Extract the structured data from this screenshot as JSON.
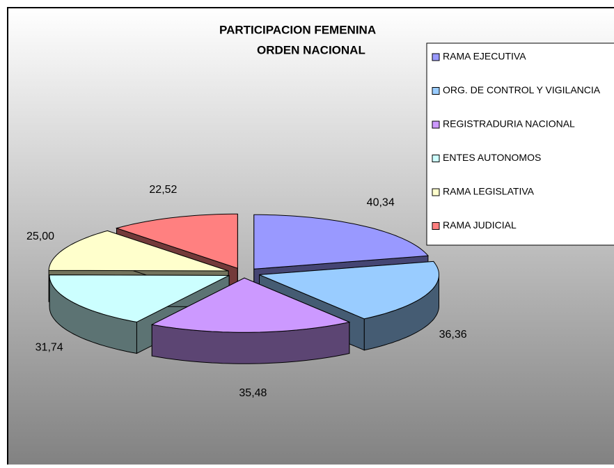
{
  "chart_data": {
    "type": "pie3d",
    "title": [
      "PARTICIPACION FEMENINA",
      "ORDEN NACIONAL"
    ],
    "categories": [
      "RAMA EJECUTIVA",
      "ORG. DE CONTROL Y VIGILANCIA",
      "REGISTRADURIA NACIONAL",
      "ENTES AUTONOMOS",
      "RAMA LEGISLATIVA",
      "RAMA JUDICIAL"
    ],
    "values": [
      40.34,
      36.36,
      35.48,
      31.74,
      25.0,
      22.52
    ],
    "value_labels": [
      "40,34",
      "36,36",
      "35,48",
      "31,74",
      "25,00",
      "22,52"
    ],
    "colors": [
      "#9999ff",
      "#99ccff",
      "#cc99ff",
      "#ccffff",
      "#ffffcc",
      "#ff8080"
    ],
    "legend": "right"
  }
}
